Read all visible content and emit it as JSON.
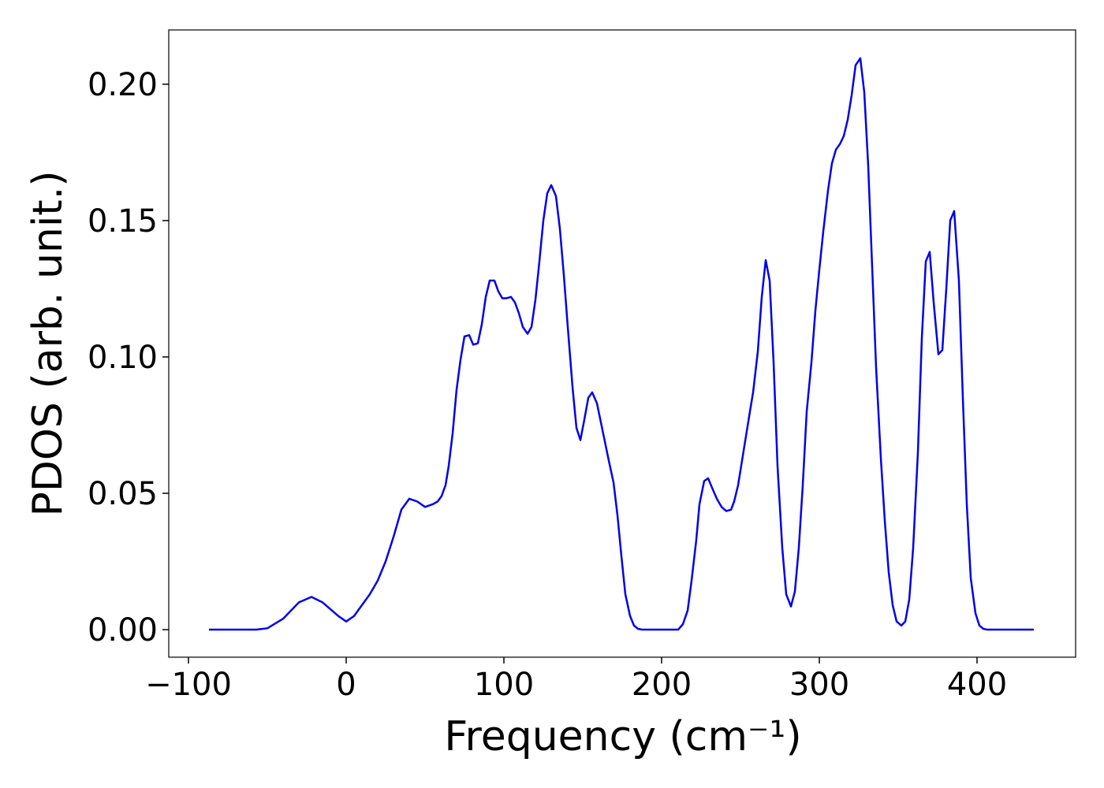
{
  "chart_data": {
    "type": "line",
    "xlabel": "Frequency (cm⁻¹)",
    "ylabel": "PDOS (arb. unit.)",
    "xlim": [
      -112.5,
      462.5
    ],
    "ylim": [
      -0.0101,
      0.2199
    ],
    "xticks": [
      {
        "value": -100,
        "label": "−100"
      },
      0,
      100,
      200,
      300,
      400
    ],
    "yticks": [
      {
        "value": 0,
        "label": "0.00"
      },
      0.05,
      {
        "value": 0.1,
        "label": "0.10"
      },
      0.15,
      {
        "value": 0.2,
        "label": "0.20"
      }
    ],
    "grid": false,
    "series": [
      {
        "color": "#0000ee",
        "x": [
          -87,
          -57,
          -50,
          -40,
          -30,
          -22,
          -15,
          -5,
          0,
          5,
          10,
          15,
          20,
          25,
          30,
          35,
          40,
          45,
          50,
          55,
          58,
          60.5,
          63,
          65,
          67.5,
          70,
          72.5,
          75,
          78,
          80.5,
          83.5,
          86,
          88.5,
          91,
          94,
          96.5,
          99,
          101.5,
          104.5,
          107,
          109.5,
          112,
          115,
          117.5,
          120,
          122.5,
          125,
          127.5,
          130,
          133,
          135.5,
          138,
          140.5,
          143.5,
          146,
          148.5,
          151,
          153.5,
          156,
          159,
          161.5,
          164,
          166.5,
          169.5,
          172,
          174.5,
          177,
          180,
          182.5,
          185,
          188,
          210.5,
          213.5,
          216.5,
          219,
          222,
          224,
          227,
          229.5,
          232,
          235,
          238,
          241,
          244,
          246,
          248.5,
          251,
          253.5,
          256,
          258,
          261,
          263.5,
          266,
          268.5,
          271,
          273.5,
          276.5,
          279,
          282,
          284.5,
          287,
          289.5,
          292,
          295,
          297.5,
          300,
          302.5,
          305.5,
          308,
          310.5,
          313,
          315.5,
          318,
          320.5,
          323,
          326,
          328.5,
          331,
          333.5,
          336,
          339,
          341.5,
          344,
          346.5,
          349,
          352,
          354.5,
          357,
          359.5,
          362.5,
          365,
          367.5,
          370,
          372.5,
          375.5,
          378,
          380.5,
          383,
          385.5,
          388.5,
          391,
          393.5,
          396,
          399,
          401.5,
          404,
          406.5,
          436
        ],
        "values": [
          0,
          0,
          0.0005,
          0.004,
          0.01,
          0.012,
          0.01,
          0.005,
          0.003,
          0.005,
          0.009,
          0.013,
          0.018,
          0.025,
          0.034,
          0.044,
          0.048,
          0.047,
          0.045,
          0.046,
          0.047,
          0.049,
          0.053,
          0.06,
          0.072,
          0.088,
          0.099,
          0.1075,
          0.108,
          0.1045,
          0.105,
          0.112,
          0.122,
          0.128,
          0.128,
          0.124,
          0.1215,
          0.1215,
          0.122,
          0.12,
          0.116,
          0.111,
          0.1085,
          0.111,
          0.121,
          0.135,
          0.15,
          0.16,
          0.163,
          0.159,
          0.147,
          0.13,
          0.111,
          0.089,
          0.074,
          0.0695,
          0.077,
          0.085,
          0.087,
          0.083,
          0.076,
          0.069,
          0.062,
          0.054,
          0.042,
          0.027,
          0.013,
          0.005,
          0.0015,
          0.0003,
          0,
          0,
          0.002,
          0.007,
          0.018,
          0.033,
          0.046,
          0.0545,
          0.0555,
          0.052,
          0.048,
          0.045,
          0.0435,
          0.044,
          0.047,
          0.053,
          0.062,
          0.071,
          0.08,
          0.087,
          0.102,
          0.122,
          0.1355,
          0.128,
          0.098,
          0.06,
          0.03,
          0.013,
          0.0085,
          0.014,
          0.03,
          0.053,
          0.08,
          0.098,
          0.117,
          0.132,
          0.146,
          0.161,
          0.171,
          0.176,
          0.178,
          0.181,
          0.187,
          0.196,
          0.207,
          0.2095,
          0.197,
          0.17,
          0.133,
          0.096,
          0.063,
          0.04,
          0.021,
          0.009,
          0.003,
          0.0015,
          0.003,
          0.011,
          0.03,
          0.065,
          0.107,
          0.135,
          0.1385,
          0.12,
          0.101,
          0.1025,
          0.125,
          0.15,
          0.1535,
          0.128,
          0.085,
          0.046,
          0.019,
          0.006,
          0.0015,
          0.0003,
          0,
          0
        ]
      }
    ]
  }
}
